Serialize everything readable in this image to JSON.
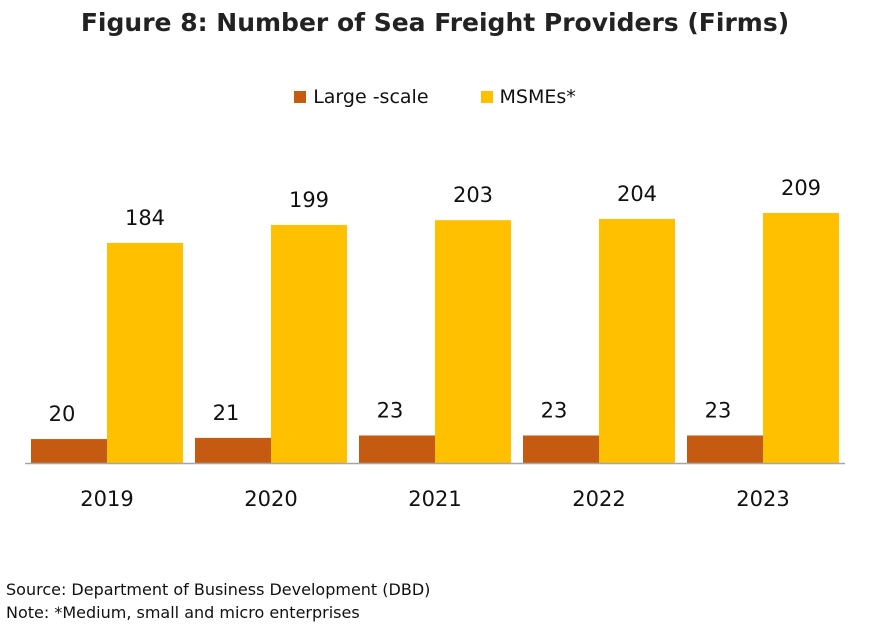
{
  "chart_data": {
    "type": "bar",
    "title": "Figure 8: Number of Sea Freight Providers (Firms)",
    "categories": [
      "2019",
      "2020",
      "2021",
      "2022",
      "2023"
    ],
    "series": [
      {
        "name": "Large -scale",
        "values": [
          20,
          21,
          23,
          23,
          23
        ],
        "color": "#C55A11"
      },
      {
        "name": "MSMEs*",
        "values": [
          184,
          199,
          203,
          204,
          209
        ],
        "color": "#FFC000"
      }
    ],
    "ylim": [
      0,
      209
    ],
    "grid": false,
    "legend_position": "top-center"
  },
  "footer": {
    "source": "Source:  Department of Business Development (DBD)",
    "note": "Note: *Medium, small and micro enterprises"
  }
}
